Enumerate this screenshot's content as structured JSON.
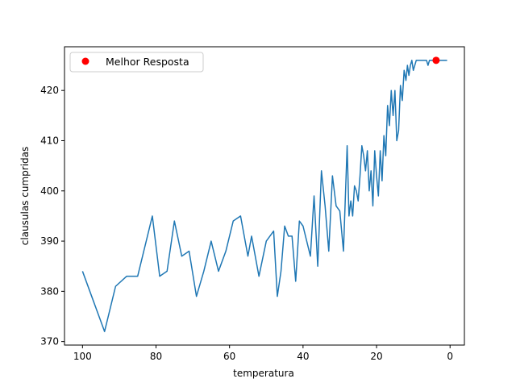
{
  "chart_data": {
    "type": "line",
    "title": "",
    "xlabel": "temperatura",
    "ylabel": "clausulas cumpridas",
    "xlim": [
      104.9,
      -3.9
    ],
    "ylim": [
      369.3,
      428.7
    ],
    "x_inverted": true,
    "xticks": [
      100,
      80,
      60,
      40,
      20,
      0
    ],
    "yticks": [
      370,
      380,
      390,
      400,
      410,
      420
    ],
    "grid": false,
    "legend": {
      "placement": "upper-left",
      "entries": [
        "Melhor Resposta"
      ]
    },
    "colors": {
      "line": "#1f77b4",
      "best_marker": "#ff0000"
    },
    "series": [
      {
        "x": [
          100,
          97,
          94,
          91,
          88,
          85,
          81,
          79,
          77,
          75,
          73,
          71,
          69,
          67,
          65,
          63,
          61,
          59,
          57,
          55,
          54,
          52,
          50,
          48,
          47,
          46,
          45,
          44,
          43,
          42,
          41,
          40,
          39,
          38,
          37,
          36,
          35,
          34,
          33,
          32,
          31,
          30,
          29,
          28,
          27.5,
          27,
          26.5,
          26,
          25.5,
          25,
          24.5,
          24,
          23.5,
          23,
          22.5,
          22,
          21.5,
          21,
          20.5,
          20,
          19.5,
          19,
          18.5,
          18,
          17.5,
          17,
          16.5,
          16,
          15.5,
          15,
          14.5,
          14,
          13.5,
          13,
          12.5,
          12,
          11.6,
          11.2,
          10.8,
          10.4,
          10,
          9.6,
          9.2,
          8.8,
          8.4,
          8,
          7.6,
          7.2,
          6.8,
          6.4,
          6,
          5.6,
          5.2,
          4.8,
          4.4,
          4,
          3.6,
          3.2,
          2.8,
          2.4,
          2,
          1.6,
          1.2,
          0.8
        ],
        "y": [
          384,
          378,
          372,
          381,
          383,
          383,
          395,
          383,
          384,
          394,
          387,
          388,
          379,
          384,
          390,
          384,
          388,
          394,
          395,
          387,
          391,
          383,
          390,
          392,
          379,
          384,
          393,
          391,
          391,
          382,
          394,
          393,
          390,
          387,
          399,
          385,
          404,
          397,
          388,
          403,
          397,
          396,
          388,
          409,
          395,
          398,
          395,
          401,
          400,
          398,
          403,
          409,
          407,
          404,
          408,
          400,
          404,
          397,
          408,
          403,
          399,
          408,
          402,
          411,
          407,
          417,
          413,
          420,
          415,
          420,
          410,
          412,
          421,
          418,
          424,
          422,
          425,
          423,
          425,
          426,
          424,
          425,
          426,
          426,
          426,
          426,
          426,
          426,
          426,
          426,
          425,
          426,
          426,
          426,
          426,
          426,
          426,
          426,
          426,
          426,
          426,
          426,
          426,
          426
        ]
      }
    ],
    "best": {
      "x": 3.8,
      "y": 426,
      "label": "Melhor Resposta"
    }
  }
}
